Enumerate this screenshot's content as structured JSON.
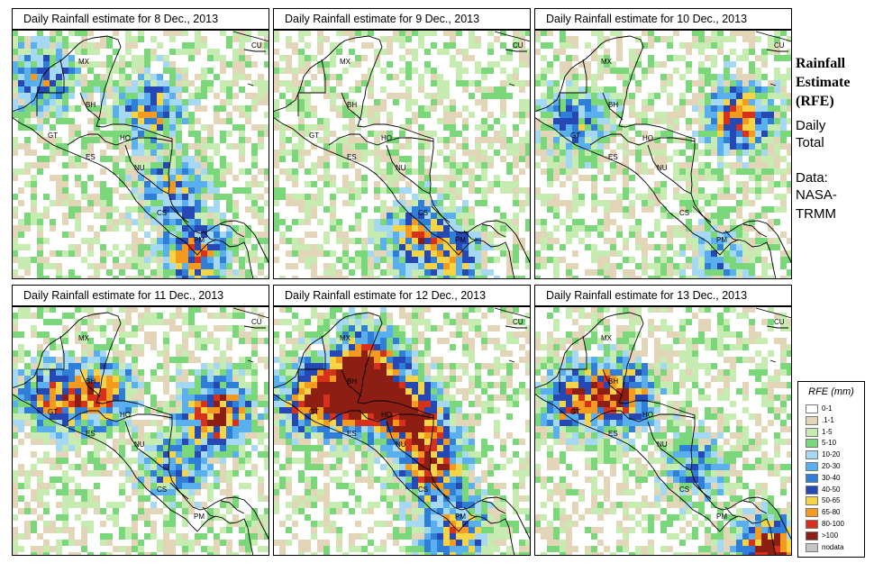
{
  "colors": {
    "bin_0_1": "#ffffff",
    "bin_01_1": "#e3d5b7",
    "bin_1_5": "#c6ecb1",
    "bin_5_10": "#7ad77a",
    "bin_10_20": "#a5d8f2",
    "bin_20_30": "#5ab0ee",
    "bin_30_40": "#2f7fd8",
    "bin_40_50": "#2548b5",
    "bin_50_65": "#f5d445",
    "bin_65_80": "#f39a1f",
    "bin_80_100": "#d7311b",
    "bin_gt100": "#8c1e13",
    "nodata": "#c6c6c6",
    "coastline": "#000000"
  },
  "sidebar": {
    "title_line1": "Rainfall",
    "title_line2": "Estimate",
    "title_line3": "(RFE)",
    "daily": "Daily",
    "total": "Total",
    "data": "Data:",
    "nasa": "NASA-",
    "trmm": "TRMM"
  },
  "country_labels": {
    "mx": "MX",
    "cu": "CU",
    "bh": "BH",
    "gt": "GT",
    "ho": "HO",
    "es": "ES",
    "nu": "NU",
    "cs": "CS",
    "pm": "PM"
  },
  "panels": [
    {
      "title": "Daily Rainfall estimate for  8 Dec., 2013",
      "seed": 8,
      "heavy": [
        {
          "place": "western-caribbean",
          "intensity": 0.6
        },
        {
          "place": "gulf-of-mexico-west",
          "intensity": 0.55
        },
        {
          "place": "panama-pacific",
          "intensity": 0.7
        },
        {
          "place": "nicaragua-caribbean",
          "intensity": 0.55
        }
      ]
    },
    {
      "title": "Daily Rainfall estimate for  9 Dec., 2013",
      "seed": 9,
      "heavy": [
        {
          "place": "costa-rica-pacific",
          "intensity": 0.6
        },
        {
          "place": "panama-pacific",
          "intensity": 0.5
        }
      ]
    },
    {
      "title": "Daily Rainfall estimate for  10 Dec., 2013",
      "seed": 10,
      "heavy": [
        {
          "place": "north-of-honduras",
          "intensity": 0.8
        },
        {
          "place": "guatemala-west",
          "intensity": 0.45
        },
        {
          "place": "panama-pacific",
          "intensity": 0.35
        }
      ]
    },
    {
      "title": "Daily Rainfall estimate for  11 Dec., 2013",
      "seed": 11,
      "heavy": [
        {
          "place": "east-caribbean",
          "intensity": 0.9
        },
        {
          "place": "belize",
          "intensity": 0.7
        },
        {
          "place": "guatemala-west",
          "intensity": 0.6
        },
        {
          "place": "nicaragua-caribbean",
          "intensity": 0.5
        }
      ]
    },
    {
      "title": "Daily Rainfall estimate for  12 Dec., 2013",
      "seed": 12,
      "heavy": [
        {
          "place": "belize",
          "intensity": 1.0
        },
        {
          "place": "honduras-north",
          "intensity": 0.95
        },
        {
          "place": "guatemala-west",
          "intensity": 0.85
        },
        {
          "place": "nicaragua-caribbean",
          "intensity": 0.8
        },
        {
          "place": "panama-pacific",
          "intensity": 0.7
        },
        {
          "place": "yucatan",
          "intensity": 0.7
        }
      ]
    },
    {
      "title": "Daily Rainfall estimate for  13 Dec., 2013",
      "seed": 13,
      "heavy": [
        {
          "place": "belize",
          "intensity": 0.75
        },
        {
          "place": "guatemala-west",
          "intensity": 0.7
        },
        {
          "place": "colombia-south-east",
          "intensity": 0.95
        },
        {
          "place": "nicaragua-caribbean",
          "intensity": 0.45
        }
      ]
    }
  ],
  "legend": {
    "title": "RFE (mm)",
    "items": [
      {
        "label": "0-1",
        "color": "#ffffff"
      },
      {
        "label": ".1-1",
        "color": "#e3d5b7"
      },
      {
        "label": "1-5",
        "color": "#c6ecb1"
      },
      {
        "label": "5-10",
        "color": "#7ad77a"
      },
      {
        "label": "10-20",
        "color": "#a5d8f2"
      },
      {
        "label": "20-30",
        "color": "#5ab0ee"
      },
      {
        "label": "30-40",
        "color": "#2f7fd8"
      },
      {
        "label": "40-50",
        "color": "#2548b5"
      },
      {
        "label": "50-65",
        "color": "#f5d445"
      },
      {
        "label": "65-80",
        "color": "#f39a1f"
      },
      {
        "label": "80-100",
        "color": "#d7311b"
      },
      {
        "label": ">100",
        "color": "#8c1e13"
      },
      {
        "label": "nodata",
        "color": "#c6c6c6"
      }
    ]
  }
}
